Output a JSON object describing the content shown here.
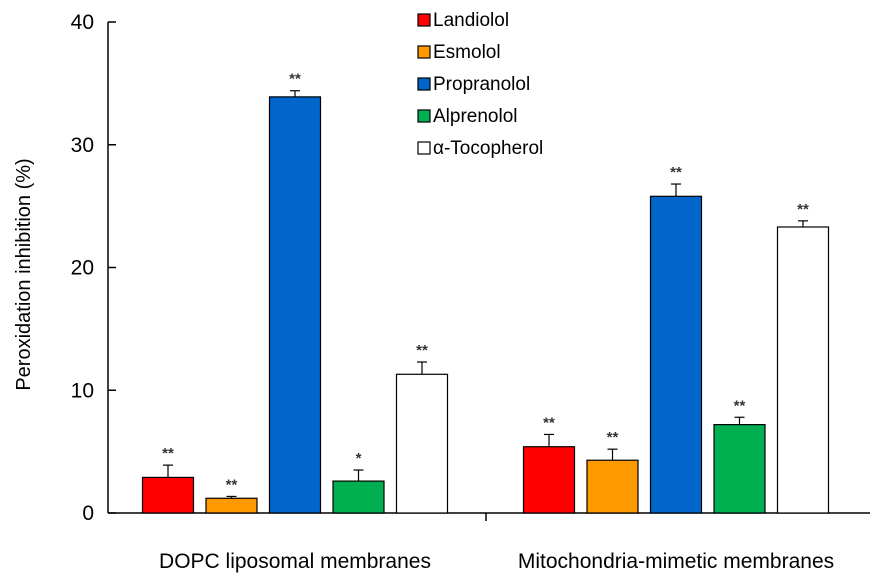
{
  "chart_data": {
    "type": "bar",
    "title": "",
    "xlabel": "",
    "ylabel": "Peroxidation inhibition (%)",
    "ylim": [
      0,
      40
    ],
    "yticks": [
      0,
      10,
      20,
      30,
      40
    ],
    "categories": [
      "DOPC liposomal membranes",
      "Mitochondria-mimetic membranes"
    ],
    "series": [
      {
        "name": "Landiolol",
        "color": "#ff0000",
        "values": [
          2.9,
          5.4
        ],
        "errors": [
          1.0,
          1.0
        ],
        "significance": [
          "**",
          "**"
        ]
      },
      {
        "name": "Esmolol",
        "color": "#ff9900",
        "values": [
          1.2,
          4.3
        ],
        "errors": [
          0.15,
          0.9
        ],
        "significance": [
          "**",
          "**"
        ]
      },
      {
        "name": "Propranolol",
        "color": "#0066cc",
        "values": [
          33.9,
          25.8
        ],
        "errors": [
          0.5,
          1.0
        ],
        "significance": [
          "**",
          "**"
        ]
      },
      {
        "name": "Alprenolol",
        "color": "#00b050",
        "values": [
          2.6,
          7.2
        ],
        "errors": [
          0.9,
          0.6
        ],
        "significance": [
          "*",
          "**"
        ]
      },
      {
        "name": "α-Tocopherol",
        "color": "#ffffff",
        "values": [
          11.3,
          23.3
        ],
        "errors": [
          1.0,
          0.5
        ],
        "significance": [
          "**",
          "**"
        ]
      }
    ],
    "legend_position": "top-center"
  }
}
